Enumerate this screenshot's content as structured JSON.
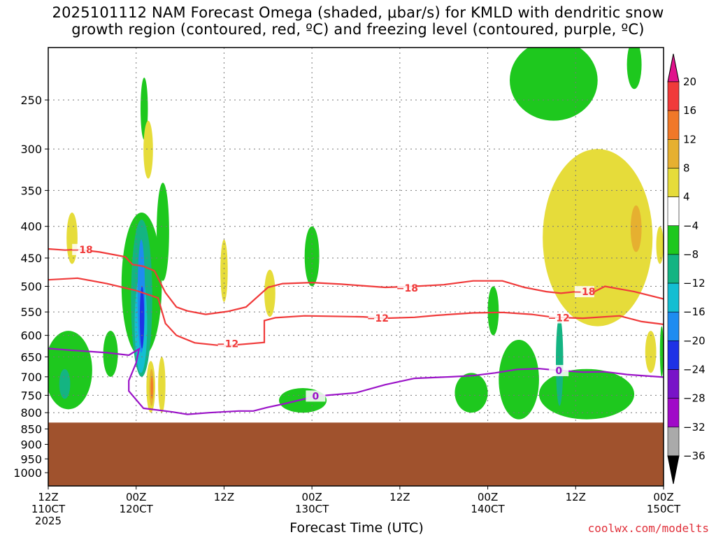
{
  "title_line1": "2025101112 NAM Forecast Omega (shaded, μbar/s) for KMLD with dendritic snow",
  "title_line2": "growth region (contoured, red, ºC) and freezing level (contoured, purple, ºC)",
  "xaxis_title": "Forecast Time (UTC)",
  "credit": "coolwx.com/modelts",
  "chart_data": {
    "type": "heatmap",
    "y_axis": {
      "label": "",
      "scale": "log-pressure",
      "range_mb": [
        1050,
        200
      ],
      "ticks": [
        250,
        300,
        350,
        400,
        450,
        500,
        550,
        600,
        650,
        700,
        750,
        800,
        850,
        900,
        950,
        1000
      ]
    },
    "x_axis": {
      "range_hours": [
        0,
        84
      ],
      "ticks": [
        {
          "hour": 0,
          "label1": "12Z",
          "label2": "110CT",
          "label3": "2025"
        },
        {
          "hour": 12,
          "label1": "00Z",
          "label2": "120CT",
          "label3": ""
        },
        {
          "hour": 24,
          "label1": "12Z",
          "label2": "",
          "label3": ""
        },
        {
          "hour": 36,
          "label1": "00Z",
          "label2": "130CT",
          "label3": ""
        },
        {
          "hour": 48,
          "label1": "12Z",
          "label2": "",
          "label3": ""
        },
        {
          "hour": 60,
          "label1": "00Z",
          "label2": "140CT",
          "label3": ""
        },
        {
          "hour": 72,
          "label1": "12Z",
          "label2": "",
          "label3": ""
        },
        {
          "hour": 84,
          "label1": "00Z",
          "label2": "150CT",
          "label3": ""
        }
      ]
    },
    "grid": true,
    "colorbar": {
      "levels": [
        "20",
        "16",
        "12",
        "8",
        "4",
        "−4",
        "−8",
        "−12",
        "−16",
        "−20",
        "−24",
        "−28",
        "−32",
        "−36"
      ],
      "colors": [
        "#e0128c",
        "#f03a3a",
        "#f07828",
        "#e6b030",
        "#e6dc3a",
        "#ffffff",
        "#1ec81e",
        "#14b482",
        "#14bed2",
        "#1e8cf0",
        "#1e32e6",
        "#7814c8",
        "#a00ac8",
        "#aaaaaa",
        "#000000"
      ]
    },
    "terrain_top_mb": 830,
    "terrain_color": "#a0522d",
    "contours": [
      {
        "label": "−18",
        "color": "#f03a3a",
        "points": [
          [
            0,
            435
          ],
          [
            2.3,
            437
          ],
          [
            4,
            436
          ],
          [
            7,
            440
          ],
          [
            10.5,
            448
          ],
          [
            11.5,
            461
          ],
          [
            13,
            464
          ],
          [
            14.5,
            472
          ],
          [
            16,
            512
          ],
          [
            17.5,
            540
          ],
          [
            19,
            548
          ],
          [
            21.5,
            555
          ],
          [
            24.5,
            549
          ],
          [
            27,
            540
          ],
          [
            30,
            502
          ],
          [
            32,
            495
          ],
          [
            36,
            493
          ],
          [
            40,
            496
          ],
          [
            46,
            502
          ],
          [
            50,
            500
          ],
          [
            54,
            497
          ],
          [
            58,
            490
          ],
          [
            62,
            490
          ],
          [
            65,
            502
          ],
          [
            68,
            510
          ],
          [
            70,
            513
          ],
          [
            72,
            510
          ],
          [
            74,
            514
          ],
          [
            76,
            500
          ],
          [
            80,
            510
          ],
          [
            84,
            524
          ]
        ],
        "label_pts": [
          [
            4.6,
            436
          ],
          [
            49,
            503
          ],
          [
            73.2,
            510
          ]
        ]
      },
      {
        "label": "−12",
        "color": "#f03a3a",
        "points": [
          [
            0,
            488
          ],
          [
            4,
            485
          ],
          [
            8,
            495
          ],
          [
            12,
            508
          ],
          [
            15,
            522
          ],
          [
            16,
            574
          ],
          [
            17.5,
            600
          ],
          [
            20,
            617
          ],
          [
            24,
            624
          ],
          [
            29.5,
            616
          ],
          [
            29.5,
            568
          ],
          [
            31,
            562
          ],
          [
            35,
            558
          ],
          [
            43,
            560
          ],
          [
            46,
            563
          ],
          [
            50,
            561
          ],
          [
            53,
            557
          ],
          [
            58,
            552
          ],
          [
            62,
            551
          ],
          [
            66,
            555
          ],
          [
            69,
            561
          ],
          [
            73,
            563
          ],
          [
            78,
            558
          ],
          [
            81,
            570
          ],
          [
            84,
            576
          ]
        ],
        "label_pts": [
          [
            24.5,
            619
          ],
          [
            45,
            563
          ],
          [
            69.7,
            562
          ]
        ]
      },
      {
        "label": "0",
        "color": "#9b14c8",
        "points": [
          [
            0,
            630
          ],
          [
            3,
            634
          ],
          [
            8,
            640
          ],
          [
            11,
            646
          ],
          [
            12.4,
            631
          ],
          [
            12,
            665
          ],
          [
            11,
            710
          ],
          [
            11,
            738
          ],
          [
            13,
            787
          ],
          [
            17,
            798
          ],
          [
            19,
            805
          ],
          [
            22,
            800
          ],
          [
            26,
            795
          ],
          [
            28,
            795
          ],
          [
            30,
            784
          ],
          [
            32,
            775
          ],
          [
            35,
            760
          ],
          [
            36.5,
            752
          ],
          [
            38,
            750
          ],
          [
            42,
            743
          ],
          [
            46,
            721
          ],
          [
            50,
            704
          ],
          [
            55,
            700
          ],
          [
            58,
            697
          ],
          [
            61,
            690
          ],
          [
            64,
            681
          ],
          [
            67,
            679
          ],
          [
            70,
            684
          ],
          [
            73,
            688
          ],
          [
            76,
            687
          ],
          [
            79,
            694
          ],
          [
            84,
            701
          ]
        ],
        "label_pts": [
          [
            36.5,
            752
          ],
          [
            69.7,
            684
          ]
        ]
      }
    ],
    "regions": [
      {
        "level": "−4",
        "hr": [
          12.6,
          13.6
        ],
        "p": [
          230,
          290
        ]
      },
      {
        "level": "4",
        "hr": [
          13.0,
          14.3
        ],
        "p": [
          270,
          335
        ]
      },
      {
        "level": "−4",
        "hr": [
          14.8,
          16.5
        ],
        "p": [
          340,
          490
        ]
      },
      {
        "level": "−4",
        "hr": [
          10.0,
          15.5
        ],
        "p": [
          380,
          650
        ]
      },
      {
        "level": "−8",
        "hr": [
          11.3,
          14.2
        ],
        "p": [
          390,
          700
        ]
      },
      {
        "level": "−12",
        "hr": [
          11.8,
          13.5
        ],
        "p": [
          480,
          690
        ]
      },
      {
        "level": "−16",
        "hr": [
          12.2,
          13.2
        ],
        "p": [
          420,
          640
        ]
      },
      {
        "level": "−20",
        "hr": [
          12.5,
          13.1
        ],
        "p": [
          500,
          630
        ]
      },
      {
        "level": "4",
        "hr": [
          13.4,
          14.6
        ],
        "p": [
          660,
          800
        ]
      },
      {
        "level": "8",
        "hr": [
          13.8,
          14.4
        ],
        "p": [
          680,
          780
        ]
      },
      {
        "level": "12",
        "hr": [
          14.0,
          14.3
        ],
        "p": [
          700,
          760
        ]
      },
      {
        "level": "4",
        "hr": [
          15.0,
          16.0
        ],
        "p": [
          650,
          800
        ]
      },
      {
        "level": "−4",
        "hr": [
          -0.5,
          6.0
        ],
        "p": [
          590,
          790
        ]
      },
      {
        "level": "−8",
        "hr": [
          1.5,
          3.0
        ],
        "p": [
          680,
          760
        ]
      },
      {
        "level": "−4",
        "hr": [
          7.5,
          9.5
        ],
        "p": [
          590,
          700
        ]
      },
      {
        "level": "4",
        "hr": [
          2.5,
          4.0
        ],
        "p": [
          380,
          460
        ]
      },
      {
        "level": "4",
        "hr": [
          23.5,
          24.5
        ],
        "p": [
          420,
          530
        ]
      },
      {
        "level": "4",
        "hr": [
          29.5,
          31.0
        ],
        "p": [
          470,
          560
        ]
      },
      {
        "level": "−4",
        "hr": [
          35.0,
          37.0
        ],
        "p": [
          400,
          500
        ]
      },
      {
        "level": "−4",
        "hr": [
          31.5,
          38.0
        ],
        "p": [
          730,
          800
        ]
      },
      {
        "level": "−4",
        "hr": [
          55.5,
          60.0
        ],
        "p": [
          690,
          800
        ]
      },
      {
        "level": "−4",
        "hr": [
          60.0,
          61.5
        ],
        "p": [
          500,
          600
        ]
      },
      {
        "level": "−4",
        "hr": [
          61.5,
          67.0
        ],
        "p": [
          610,
          820
        ]
      },
      {
        "level": "−4",
        "hr": [
          67.0,
          80.0
        ],
        "p": [
          680,
          820
        ]
      },
      {
        "level": "−8",
        "hr": [
          69.3,
          70.3
        ],
        "p": [
          560,
          780
        ]
      },
      {
        "level": "−4",
        "hr": [
          63.0,
          75.0
        ],
        "p": [
          200,
          270
        ]
      },
      {
        "level": "4",
        "hr": [
          67.5,
          82.5
        ],
        "p": [
          300,
          580
        ]
      },
      {
        "level": "8",
        "hr": [
          79.5,
          81.0
        ],
        "p": [
          370,
          440
        ]
      },
      {
        "level": "4",
        "hr": [
          81.5,
          83.0
        ],
        "p": [
          590,
          690
        ]
      },
      {
        "level": "4",
        "hr": [
          83.0,
          84.0
        ],
        "p": [
          400,
          460
        ]
      },
      {
        "level": "−4",
        "hr": [
          83.5,
          84.0
        ],
        "p": [
          580,
          700
        ]
      },
      {
        "level": "−4",
        "hr": [
          79.0,
          81.0
        ],
        "p": [
          200,
          240
        ]
      }
    ]
  }
}
